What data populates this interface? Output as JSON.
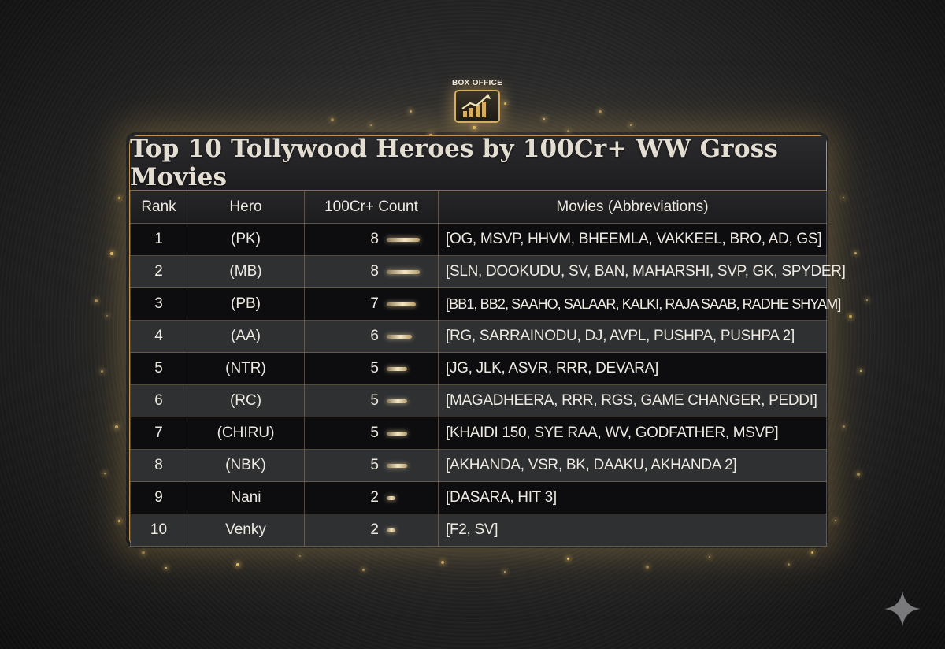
{
  "emblem": {
    "label": "BOX OFFICE",
    "icon": "bar-chart-growth-icon"
  },
  "chart_data": {
    "type": "table",
    "title": "Top 10 Tollywood Heroes by 100Cr+ WW Gross Movies",
    "columns": [
      "Rank",
      "Hero",
      "100Cr+ Count",
      "Movies (Abbreviations)"
    ],
    "rows": [
      {
        "rank": "1",
        "hero": "(PK)",
        "count": 8,
        "movies": "[OG, MSVP, HHVM, BHEEMLA, VAKKEEL, BRO, AD, GS]"
      },
      {
        "rank": "2",
        "hero": "(MB)",
        "count": 8,
        "movies": "[SLN, DOOKUDU, SV, BAN, MAHARSHI, SVP, GK, SPYDER]"
      },
      {
        "rank": "3",
        "hero": "(PB)",
        "count": 7,
        "movies": "[BB1, BB2, SAAHO, SALAAR, KALKI, RAJA SAAB, RADHE SHYAM]"
      },
      {
        "rank": "4",
        "hero": "(AA)",
        "count": 6,
        "movies": "[RG, SARRAINODU, DJ, AVPL, PUSHPA, PUSHPA 2]"
      },
      {
        "rank": "5",
        "hero": "(NTR)",
        "count": 5,
        "movies": "[JG, JLK, ASVR, RRR, DEVARA]"
      },
      {
        "rank": "6",
        "hero": "(RC)",
        "count": 5,
        "movies": "[MAGADHEERA, RRR, RGS, GAME CHANGER, PEDDI]"
      },
      {
        "rank": "7",
        "hero": "(CHIRU)",
        "count": 5,
        "movies": "[KHAIDI 150, SYE RAA, WV, GODFATHER, MSVP]"
      },
      {
        "rank": "8",
        "hero": "(NBK)",
        "count": 5,
        "movies": "[AKHANDA, VSR, BK, DAAKU, AKHANDA 2]"
      },
      {
        "rank": "9",
        "hero": "Nani",
        "count": 2,
        "movies": "[DASARA, HIT 3]"
      },
      {
        "rank": "10",
        "hero": "Venky",
        "count": 2,
        "movies": "[F2, SV]"
      }
    ],
    "count_range": [
      0,
      8
    ]
  },
  "colors": {
    "accent_gold": "#d6ad5e",
    "row_dark": "#0d0d0f",
    "row_light": "#2f3032",
    "text": "#eeeae2"
  },
  "watermark_icon": "gemini-sparkle-icon"
}
